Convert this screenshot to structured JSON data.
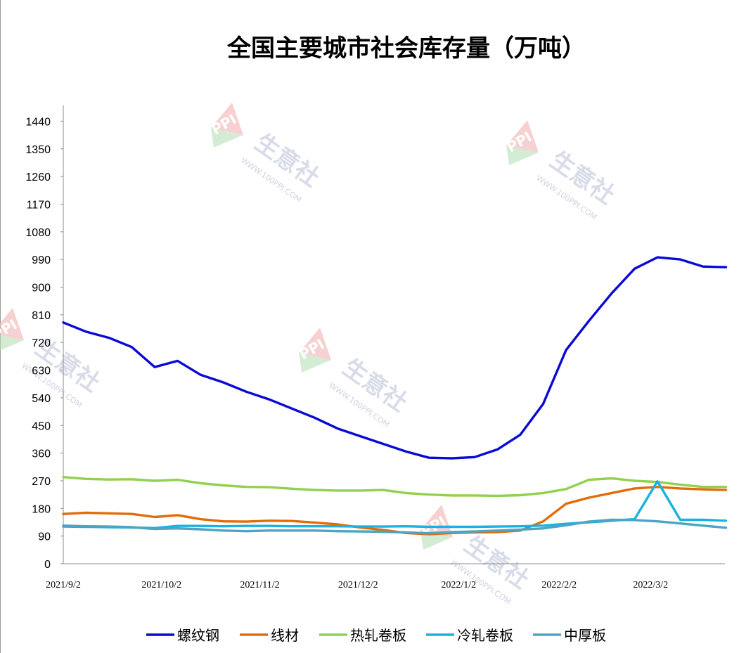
{
  "chart_data": {
    "type": "line",
    "title": "全国主要城市社会库存量（万吨）",
    "yticks": [
      0,
      90,
      180,
      270,
      360,
      450,
      540,
      630,
      720,
      810,
      900,
      990,
      1080,
      1170,
      1260,
      1350,
      1440
    ],
    "ylim": [
      0,
      1500
    ],
    "xlim": [
      0,
      28.7
    ],
    "x_tick_positions": [
      0,
      4.3,
      8.6,
      12.9,
      17.3,
      21.7,
      25.7
    ],
    "x_tick_labels": [
      "2021/9/2",
      "2021/10/2",
      "2021/11/2",
      "2021/12/2",
      "2022/1/2",
      "2022/2/2",
      "2022/3/2"
    ],
    "x": [
      0,
      1,
      2,
      3,
      4,
      5,
      6,
      7,
      8,
      9,
      10,
      11,
      12,
      13,
      14,
      15,
      16,
      17,
      18,
      19,
      20,
      21,
      22,
      23,
      24,
      25,
      26,
      27,
      28,
      29
    ],
    "series": [
      {
        "name": "螺纹钢",
        "color": "#0a0ad4",
        "values": [
          785,
          755,
          735,
          705,
          640,
          660,
          615,
          590,
          560,
          535,
          505,
          475,
          440,
          415,
          390,
          365,
          345,
          343,
          347,
          372,
          420,
          520,
          695,
          790,
          880,
          960,
          997,
          990,
          967,
          965
        ]
      },
      {
        "name": "线材",
        "color": "#e36c0a",
        "values": [
          162,
          166,
          164,
          162,
          152,
          158,
          145,
          138,
          137,
          140,
          139,
          134,
          128,
          118,
          110,
          100,
          96,
          100,
          102,
          103,
          108,
          138,
          195,
          215,
          230,
          245,
          250,
          245,
          242,
          240
        ]
      },
      {
        "name": "热轧卷板",
        "color": "#92d050",
        "values": [
          282,
          276,
          274,
          275,
          270,
          273,
          262,
          255,
          250,
          249,
          244,
          240,
          238,
          238,
          240,
          230,
          225,
          222,
          222,
          221,
          223,
          230,
          243,
          273,
          278,
          270,
          266,
          257,
          250,
          250
        ]
      },
      {
        "name": "冷轧卷板",
        "color": "#1ab2e0",
        "values": [
          121,
          120,
          119,
          118,
          116,
          123,
          123,
          122,
          123,
          123,
          122,
          122,
          122,
          121,
          121,
          122,
          120,
          120,
          120,
          121,
          122,
          124,
          130,
          135,
          140,
          145,
          268,
          143,
          143,
          140
        ]
      },
      {
        "name": "中厚板",
        "color": "#4ba5c3",
        "values": [
          124,
          122,
          121,
          119,
          113,
          115,
          112,
          108,
          106,
          108,
          108,
          108,
          106,
          105,
          104,
          102,
          99,
          103,
          105,
          108,
          111,
          115,
          125,
          137,
          143,
          142,
          138,
          131,
          124,
          117
        ]
      }
    ],
    "grid": false,
    "legend_position": "bottom",
    "watermark": {
      "brand": "PPI",
      "text": "生意社",
      "url": "WWW.100PPI.COM"
    }
  }
}
